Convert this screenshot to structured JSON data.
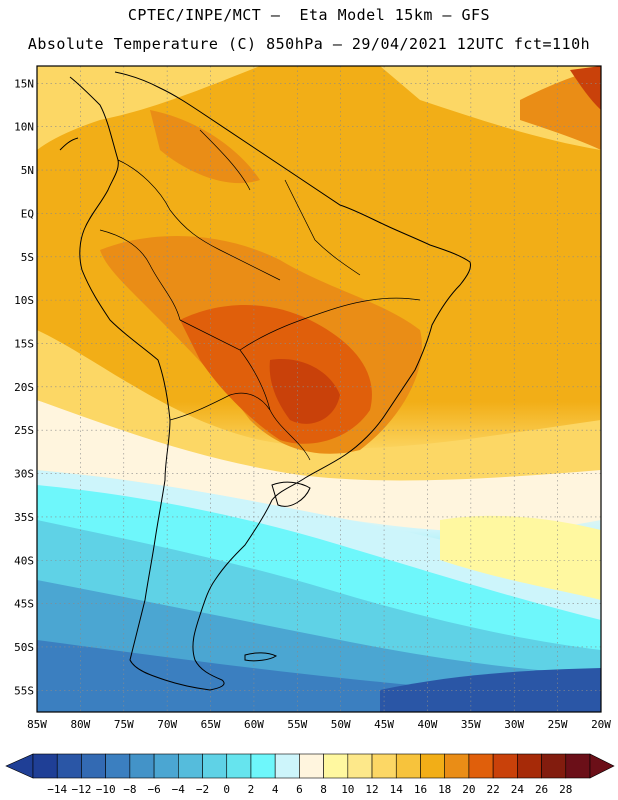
{
  "header": {
    "line1": "CPTEC/INPE/MCT –  Eta Model 15km – GFS",
    "line2": "Absolute Temperature (C) 850hPa – 29/04/2021 12UTC fct=110h"
  },
  "map": {
    "lat_labels": [
      "15N",
      "10N",
      "5N",
      "EQ",
      "5S",
      "10S",
      "15S",
      "20S",
      "25S",
      "30S",
      "35S",
      "40S",
      "45S",
      "50S",
      "55S"
    ],
    "lon_labels": [
      "85W",
      "80W",
      "75W",
      "70W",
      "65W",
      "60W",
      "55W",
      "50W",
      "45W",
      "40W",
      "35W",
      "30W",
      "25W",
      "20W"
    ],
    "extent": {
      "west": -85,
      "east": -20,
      "south": -57.5,
      "north": 17
    }
  },
  "colorbar": {
    "labels": [
      "-14",
      "-12",
      "-10",
      "-8",
      "-6",
      "-4",
      "-2",
      "0",
      "2",
      "4",
      "6",
      "8",
      "10",
      "12",
      "14",
      "16",
      "18",
      "20",
      "22",
      "24",
      "26",
      "28"
    ],
    "colors": [
      "#1f3f96",
      "#2a56a6",
      "#336ab3",
      "#3b7fc0",
      "#4393c8",
      "#4ba6d2",
      "#55bcdc",
      "#5fd2e6",
      "#66e4ee",
      "#6ef7fb",
      "#cdf5fb",
      "#fff5de",
      "#fff8a0",
      "#fde88a",
      "#fcd765",
      "#f7c33c",
      "#f2ae17",
      "#ea8d16",
      "#e05f0b",
      "#c9410a",
      "#a62a08",
      "#821c0e",
      "#6b0f18"
    ]
  }
}
